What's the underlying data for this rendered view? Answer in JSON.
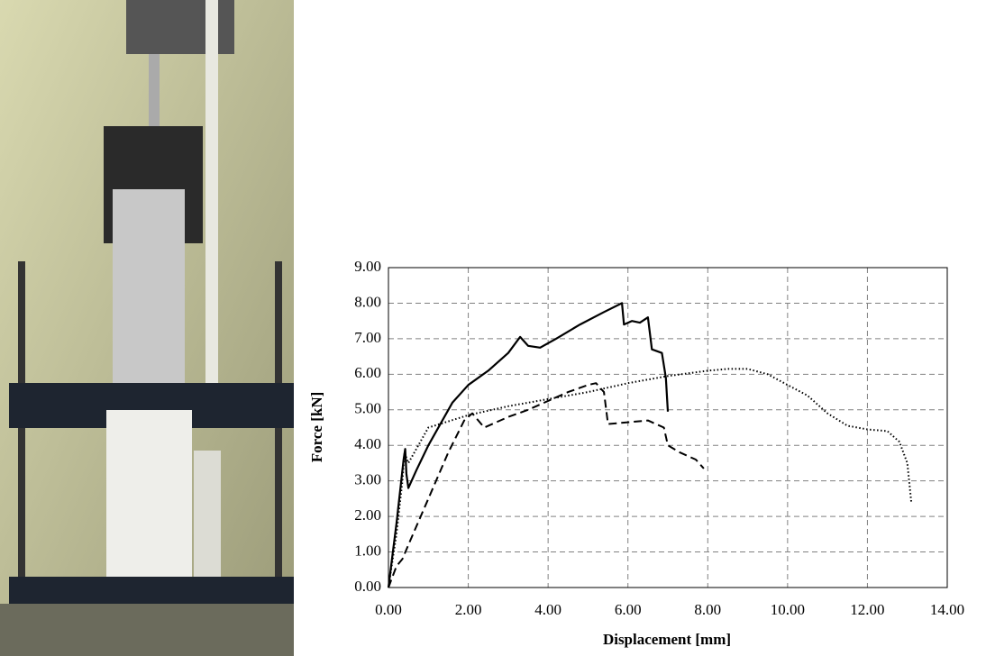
{
  "chart_data": {
    "type": "line",
    "xlabel": "Displacement [mm]",
    "ylabel": "Force [kN]",
    "xlim": [
      0,
      14
    ],
    "ylim": [
      0,
      9
    ],
    "xticks": [
      {
        "value": 0,
        "label": "0.00"
      },
      {
        "value": 2,
        "label": "2.00"
      },
      {
        "value": 4,
        "label": "4.00"
      },
      {
        "value": 6,
        "label": "6.00"
      },
      {
        "value": 8,
        "label": "8.00"
      },
      {
        "value": 10,
        "label": "10.00"
      },
      {
        "value": 12,
        "label": "12.00"
      },
      {
        "value": 14,
        "label": "14.00"
      }
    ],
    "yticks": [
      {
        "value": 0,
        "label": "0.00"
      },
      {
        "value": 1,
        "label": "1.00"
      },
      {
        "value": 2,
        "label": "2.00"
      },
      {
        "value": 3,
        "label": "3.00"
      },
      {
        "value": 4,
        "label": "4.00"
      },
      {
        "value": 5,
        "label": "5.00"
      },
      {
        "value": 6,
        "label": "6.00"
      },
      {
        "value": 7,
        "label": "7.00"
      },
      {
        "value": 8,
        "label": "8.00"
      },
      {
        "value": 9,
        "label": "9.00"
      }
    ],
    "grid": true,
    "series": [
      {
        "color": "#000000",
        "dash": "solid",
        "x": [
          0,
          0.1,
          0.2,
          0.3,
          0.38,
          0.42,
          0.45,
          0.5,
          0.7,
          1.0,
          1.3,
          1.6,
          2.0,
          2.5,
          3.0,
          3.3,
          3.5,
          3.8,
          4.2,
          4.8,
          5.4,
          5.85,
          5.9,
          6.1,
          6.3,
          6.5,
          6.6,
          6.85,
          6.95,
          7.0
        ],
        "values": [
          0,
          0.9,
          1.8,
          2.8,
          3.6,
          3.9,
          3.2,
          2.8,
          3.3,
          4.0,
          4.6,
          5.2,
          5.7,
          6.1,
          6.6,
          7.05,
          6.8,
          6.75,
          7.0,
          7.4,
          7.75,
          8.0,
          7.4,
          7.5,
          7.45,
          7.6,
          6.7,
          6.6,
          5.9,
          4.95
        ]
      },
      {
        "color": "#000000",
        "dash": "dashed",
        "x": [
          0,
          0.2,
          0.35,
          0.5,
          1.0,
          1.5,
          1.9,
          2.1,
          2.4,
          3.0,
          3.5,
          4.0,
          4.5,
          5.0,
          5.2,
          5.4,
          5.5,
          6.0,
          6.5,
          6.9,
          7.0,
          7.3,
          7.7,
          7.9
        ],
        "values": [
          0,
          0.6,
          0.8,
          1.2,
          2.5,
          3.8,
          4.7,
          4.9,
          4.5,
          4.8,
          5.0,
          5.25,
          5.5,
          5.7,
          5.75,
          5.5,
          4.6,
          4.65,
          4.7,
          4.5,
          4.0,
          3.8,
          3.6,
          3.35
        ]
      },
      {
        "color": "#000000",
        "dash": "dotted",
        "x": [
          0,
          0.2,
          0.35,
          0.4,
          0.5,
          1.0,
          2.0,
          3.0,
          4.0,
          5.0,
          6.0,
          7.0,
          8.0,
          8.5,
          9.0,
          9.5,
          10.0,
          10.5,
          11.0,
          11.5,
          12.0,
          12.5,
          12.8,
          13.0,
          13.1
        ],
        "values": [
          0,
          1.5,
          3.0,
          3.8,
          3.5,
          4.5,
          4.85,
          5.1,
          5.3,
          5.5,
          5.75,
          5.95,
          6.1,
          6.15,
          6.15,
          6.0,
          5.7,
          5.4,
          4.9,
          4.55,
          4.45,
          4.4,
          4.1,
          3.5,
          2.4
        ]
      }
    ]
  }
}
